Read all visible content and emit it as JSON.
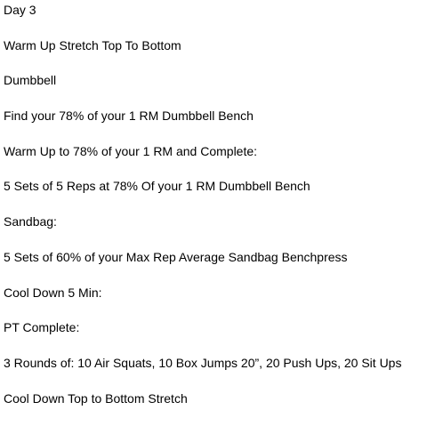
{
  "document": {
    "lines": [
      "Day 3",
      "Warm Up Stretch Top To Bottom",
      "Dumbbell",
      "Find your 78% of your 1 RM Dumbbell Bench",
      "Warm Up to 78% of your 1 RM and Complete:",
      "5 Sets of 5 Reps at 78% Of your 1 RM Dumbbell Bench",
      "Sandbag:",
      "5 Sets of 60% of your Max Rep Average Sandbag Benchpress",
      "Cool Down 5 Min:",
      "PT Complete:",
      "3 Rounds of: 10 Air Squats, 10 Box Jumps 20”, 20 Push Ups, 20 Sit Ups",
      "Cool Down Top to Bottom Stretch"
    ]
  }
}
